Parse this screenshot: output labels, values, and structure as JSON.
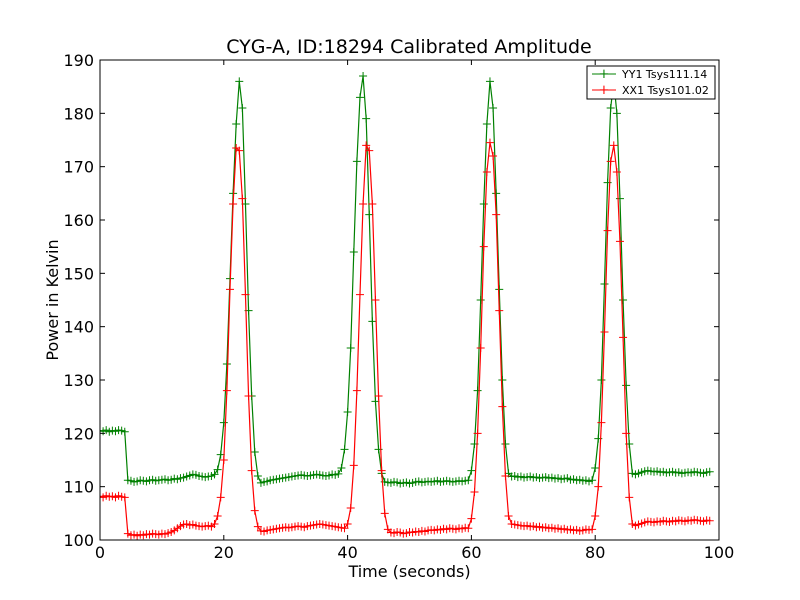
{
  "chart_data": {
    "type": "line",
    "title": "CYG-A, ID:18294 Calibrated Amplitude",
    "xlabel": "Time (seconds)",
    "ylabel": "Power in Kelvin",
    "xlim": [
      0,
      100
    ],
    "ylim": [
      100,
      190
    ],
    "xticks": [
      0,
      20,
      40,
      60,
      80,
      100
    ],
    "yticks": [
      100,
      110,
      120,
      130,
      140,
      150,
      160,
      170,
      180,
      190
    ],
    "grid": false,
    "legend_position": "top-right",
    "marker": "+",
    "x": [
      0,
      0.5,
      1,
      1.5,
      2,
      2.5,
      3,
      3.5,
      4,
      4.5,
      5,
      5.5,
      6,
      6.5,
      7,
      7.5,
      8,
      8.5,
      9,
      9.5,
      10,
      10.5,
      11,
      11.5,
      12,
      12.5,
      13,
      13.5,
      14,
      14.5,
      15,
      15.5,
      16,
      16.5,
      17,
      17.5,
      18,
      18.5,
      19,
      19.5,
      20,
      20.5,
      21,
      21.5,
      22,
      22.5,
      23,
      23.5,
      24,
      24.5,
      25,
      25.5,
      26,
      26.5,
      27,
      27.5,
      28,
      28.5,
      29,
      29.5,
      30,
      30.5,
      31,
      31.5,
      32,
      32.5,
      33,
      33.5,
      34,
      34.5,
      35,
      35.5,
      36,
      36.5,
      37,
      37.5,
      38,
      38.5,
      39,
      39.5,
      40,
      40.5,
      41,
      41.5,
      42,
      42.5,
      43,
      43.5,
      44,
      44.5,
      45,
      45.5,
      46,
      46.5,
      47,
      47.5,
      48,
      48.5,
      49,
      49.5,
      50,
      50.5,
      51,
      51.5,
      52,
      52.5,
      53,
      53.5,
      54,
      54.5,
      55,
      55.5,
      56,
      56.5,
      57,
      57.5,
      58,
      58.5,
      59,
      59.5,
      60,
      60.5,
      61,
      61.5,
      62,
      62.5,
      63,
      63.5,
      64,
      64.5,
      65,
      65.5,
      66,
      66.5,
      67,
      67.5,
      68,
      68.5,
      69,
      69.5,
      70,
      70.5,
      71,
      71.5,
      72,
      72.5,
      73,
      73.5,
      74,
      74.5,
      75,
      75.5,
      76,
      76.5,
      77,
      77.5,
      78,
      78.5,
      79,
      79.5,
      80,
      80.5,
      81,
      81.5,
      82,
      82.5,
      83,
      83.5,
      84,
      84.5,
      85,
      85.5,
      86,
      86.5,
      87,
      87.5,
      88,
      88.5,
      89,
      89.5,
      90,
      90.5,
      91,
      91.5,
      92,
      92.5,
      93,
      93.5,
      94,
      94.5,
      95,
      95.5,
      96,
      96.5,
      97,
      97.5,
      98,
      98.5
    ],
    "series": [
      {
        "name": "YY1 Tsys111.14",
        "color": "#008000",
        "values": [
          120.5,
          120.4,
          120.6,
          120.3,
          120.5,
          120.4,
          120.6,
          120.5,
          120.3,
          111.2,
          111.1,
          110.9,
          111.0,
          111.2,
          111.1,
          111.0,
          111.2,
          111.3,
          111.1,
          111.2,
          111.3,
          111.4,
          111.2,
          111.3,
          111.5,
          111.4,
          111.6,
          111.7,
          111.9,
          112.1,
          112.3,
          112.2,
          112.0,
          111.9,
          111.8,
          111.9,
          112.0,
          112.3,
          113.2,
          116.0,
          122.0,
          133.0,
          149.0,
          165.0,
          178.0,
          186.0,
          181.0,
          163.0,
          143.0,
          127.0,
          116.5,
          112.0,
          110.7,
          110.9,
          111.0,
          111.2,
          111.3,
          111.4,
          111.5,
          111.6,
          111.7,
          111.8,
          111.9,
          112.0,
          112.1,
          112.2,
          112.1,
          112.0,
          112.1,
          112.2,
          112.3,
          112.2,
          112.1,
          112.0,
          112.1,
          112.3,
          112.2,
          112.4,
          113.5,
          117.0,
          124.0,
          136.0,
          154.0,
          171.0,
          183.0,
          187.0,
          179.0,
          161.0,
          141.0,
          126.0,
          117.0,
          112.5,
          110.9,
          110.8,
          110.7,
          110.9,
          110.8,
          110.6,
          110.7,
          110.8,
          110.6,
          110.7,
          110.9,
          111.0,
          110.8,
          110.9,
          111.0,
          110.9,
          111.0,
          111.1,
          110.9,
          111.0,
          111.1,
          111.0,
          110.9,
          111.0,
          111.1,
          111.0,
          111.1,
          111.2,
          113.0,
          118.0,
          128.0,
          145.0,
          163.0,
          178.0,
          186.0,
          181.0,
          165.0,
          147.0,
          130.0,
          118.0,
          112.5,
          111.9,
          112.0,
          111.8,
          111.9,
          111.7,
          111.8,
          111.9,
          111.7,
          111.8,
          111.6,
          111.7,
          111.8,
          111.6,
          111.7,
          111.5,
          111.6,
          111.4,
          111.5,
          111.6,
          111.3,
          111.4,
          111.2,
          111.3,
          111.1,
          111.2,
          111.0,
          111.2,
          113.5,
          119.0,
          130.0,
          148.0,
          167.0,
          181.0,
          186.0,
          180.0,
          164.0,
          145.0,
          129.0,
          118.0,
          112.5,
          112.3,
          112.5,
          112.7,
          112.9,
          113.0,
          112.9,
          112.8,
          112.9,
          112.7,
          112.8,
          112.6,
          112.7,
          112.8,
          112.6,
          112.7,
          112.5,
          112.6,
          112.7,
          112.6,
          112.8,
          112.7,
          112.6,
          112.5,
          112.7,
          112.8
        ]
      },
      {
        "name": "XX1 Tsys101.02",
        "color": "#ff0000",
        "values": [
          108.2,
          108.0,
          108.3,
          108.1,
          108.2,
          108.0,
          108.3,
          108.1,
          108.0,
          101.2,
          100.9,
          101.0,
          100.8,
          101.0,
          100.9,
          101.1,
          101.0,
          101.2,
          101.1,
          101.0,
          101.2,
          101.1,
          101.3,
          101.5,
          101.8,
          102.2,
          102.6,
          102.9,
          103.0,
          102.8,
          102.9,
          102.7,
          102.6,
          102.5,
          102.6,
          102.7,
          102.5,
          103.0,
          104.5,
          108.0,
          115.0,
          128.0,
          147.0,
          163.0,
          173.5,
          173.0,
          164.0,
          146.0,
          127.0,
          113.0,
          105.5,
          102.5,
          101.7,
          101.6,
          101.8,
          101.9,
          102.0,
          102.1,
          102.2,
          102.3,
          102.4,
          102.3,
          102.4,
          102.5,
          102.6,
          102.5,
          102.4,
          102.6,
          102.7,
          102.8,
          102.9,
          103.0,
          102.9,
          102.8,
          102.7,
          102.6,
          102.5,
          102.4,
          102.3,
          102.2,
          103.0,
          106.0,
          114.0,
          128.0,
          146.0,
          163.0,
          174.0,
          173.0,
          163.0,
          145.0,
          127.0,
          113.0,
          105.0,
          102.0,
          101.4,
          101.3,
          101.5,
          101.4,
          101.2,
          101.3,
          101.5,
          101.4,
          101.6,
          101.5,
          101.7,
          101.6,
          101.8,
          101.9,
          101.8,
          102.0,
          101.9,
          102.1,
          102.0,
          102.2,
          102.1,
          102.0,
          102.2,
          102.1,
          102.3,
          102.2,
          104.0,
          109.0,
          120.0,
          136.0,
          155.0,
          169.0,
          174.5,
          172.0,
          161.0,
          143.0,
          125.0,
          112.0,
          104.5,
          103.0,
          102.9,
          102.8,
          102.7,
          102.6,
          102.7,
          102.5,
          102.6,
          102.4,
          102.5,
          102.3,
          102.4,
          102.2,
          102.3,
          102.1,
          102.2,
          102.0,
          102.1,
          101.9,
          102.0,
          101.8,
          101.9,
          101.7,
          101.8,
          102.0,
          101.9,
          102.0,
          104.5,
          110.0,
          122.0,
          139.0,
          158.0,
          171.0,
          174.0,
          169.0,
          156.0,
          138.0,
          120.0,
          108.0,
          103.0,
          102.7,
          102.9,
          103.1,
          103.3,
          103.5,
          103.4,
          103.3,
          103.5,
          103.4,
          103.6,
          103.5,
          103.4,
          103.6,
          103.5,
          103.7,
          103.6,
          103.5,
          103.7,
          103.6,
          103.8,
          103.7,
          103.6,
          103.5,
          103.7,
          103.6
        ]
      }
    ]
  }
}
